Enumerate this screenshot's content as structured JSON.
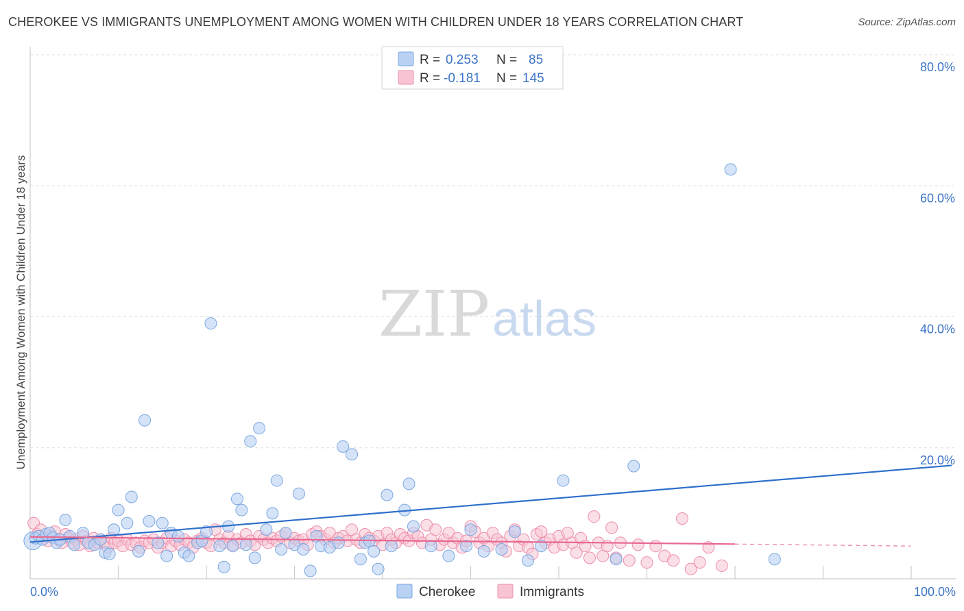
{
  "title": "CHEROKEE VS IMMIGRANTS UNEMPLOYMENT AMONG WOMEN WITH CHILDREN UNDER 18 YEARS CORRELATION CHART",
  "source": "Source: ZipAtlas.com",
  "watermark": {
    "zip": "ZIP",
    "atlas": "atlas"
  },
  "colors": {
    "cherokee_fill": "#b9d1f3",
    "cherokee_stroke": "#7aa7e0",
    "cherokee_line": "#2e6fcc",
    "immigrants_fill": "#f8c4d3",
    "immigrants_stroke": "#ec8fab",
    "immigrants_line": "#e8678f",
    "grid": "#dddddd",
    "tick": "#3b74c6"
  },
  "legend": {
    "row1": {
      "r_label": "R =",
      "r_value": "0.253",
      "n_label": "N =",
      "n_value": "85"
    },
    "row2": {
      "r_label": "R =",
      "r_value": "-0.181",
      "n_label": "N =",
      "n_value": "145"
    }
  },
  "chart_data": {
    "type": "scatter",
    "title": "CHEROKEE VS IMMIGRANTS UNEMPLOYMENT AMONG WOMEN WITH CHILDREN UNDER 18 YEARS CORRELATION CHART",
    "xlabel": "",
    "ylabel": "Unemployment Among Women with Children Under 18 years",
    "xlim": [
      0,
      100
    ],
    "ylim": [
      0,
      82
    ],
    "x_tick_labels": [
      "0.0%",
      "100.0%"
    ],
    "y_ticks": [
      20,
      40,
      60,
      80
    ],
    "y_tick_labels": [
      "20.0%",
      "40.0%",
      "60.0%",
      "80.0%"
    ],
    "series": [
      {
        "name": "Cherokee",
        "R": 0.253,
        "N": 85,
        "trend": {
          "x": [
            0,
            100
          ],
          "y": [
            5.6,
            16.8
          ]
        },
        "points": [
          [
            0.3,
            5.8
          ],
          [
            0.6,
            6.2
          ],
          [
            1.0,
            6.5
          ],
          [
            1.4,
            6.0
          ],
          [
            1.8,
            6.8
          ],
          [
            2.2,
            7.0
          ],
          [
            2.6,
            6.3
          ],
          [
            3.0,
            5.5
          ],
          [
            3.4,
            6.0
          ],
          [
            4.0,
            9.0
          ],
          [
            4.5,
            6.5
          ],
          [
            5.0,
            5.2
          ],
          [
            6.0,
            7.0
          ],
          [
            6.6,
            5.5
          ],
          [
            7.3,
            5.2
          ],
          [
            8.0,
            6.0
          ],
          [
            8.5,
            4.0
          ],
          [
            9.0,
            3.8
          ],
          [
            9.5,
            7.5
          ],
          [
            10.0,
            10.5
          ],
          [
            11.0,
            8.5
          ],
          [
            11.5,
            12.5
          ],
          [
            12.3,
            4.2
          ],
          [
            13.0,
            24.2
          ],
          [
            13.5,
            8.8
          ],
          [
            14.5,
            5.5
          ],
          [
            15.0,
            8.5
          ],
          [
            15.5,
            3.5
          ],
          [
            16.0,
            7.0
          ],
          [
            16.8,
            6.5
          ],
          [
            17.5,
            4.0
          ],
          [
            18.0,
            3.5
          ],
          [
            19.0,
            5.5
          ],
          [
            19.5,
            5.8
          ],
          [
            20.0,
            7.2
          ],
          [
            20.5,
            39.0
          ],
          [
            21.5,
            5.0
          ],
          [
            22.0,
            1.8
          ],
          [
            22.5,
            8.0
          ],
          [
            23.0,
            5.0
          ],
          [
            23.5,
            12.2
          ],
          [
            24.0,
            10.5
          ],
          [
            24.5,
            5.2
          ],
          [
            25.0,
            21.0
          ],
          [
            25.5,
            3.2
          ],
          [
            26.0,
            23.0
          ],
          [
            26.8,
            7.5
          ],
          [
            27.5,
            10.0
          ],
          [
            28.0,
            15.0
          ],
          [
            28.5,
            4.5
          ],
          [
            29.0,
            7.0
          ],
          [
            30.0,
            5.2
          ],
          [
            30.5,
            13.0
          ],
          [
            31.0,
            4.5
          ],
          [
            31.8,
            1.2
          ],
          [
            32.5,
            6.5
          ],
          [
            33.0,
            5.0
          ],
          [
            34.0,
            4.8
          ],
          [
            35.0,
            5.5
          ],
          [
            35.5,
            20.2
          ],
          [
            36.5,
            19.0
          ],
          [
            37.5,
            3.0
          ],
          [
            38.0,
            5.5
          ],
          [
            38.5,
            5.8
          ],
          [
            39.0,
            4.2
          ],
          [
            39.5,
            1.5
          ],
          [
            40.5,
            12.8
          ],
          [
            41.0,
            5.0
          ],
          [
            42.5,
            10.5
          ],
          [
            43.0,
            14.5
          ],
          [
            43.5,
            8.0
          ],
          [
            45.5,
            5.0
          ],
          [
            47.5,
            3.5
          ],
          [
            49.5,
            5.0
          ],
          [
            50.0,
            7.5
          ],
          [
            51.5,
            4.2
          ],
          [
            53.5,
            4.5
          ],
          [
            55.0,
            7.2
          ],
          [
            56.5,
            2.8
          ],
          [
            58.0,
            5.0
          ],
          [
            60.5,
            15.0
          ],
          [
            66.5,
            3.0
          ],
          [
            68.5,
            17.2
          ],
          [
            79.5,
            62.5
          ],
          [
            84.5,
            3.0
          ]
        ]
      },
      {
        "name": "Immigrants",
        "R": -0.181,
        "N": 145,
        "trend": {
          "x": [
            0,
            80
          ],
          "y": [
            6.4,
            5.3
          ]
        },
        "trend_dashed": {
          "x": [
            80,
            100
          ],
          "y": [
            5.3,
            5.0
          ]
        },
        "points": [
          [
            0.4,
            8.5
          ],
          [
            0.8,
            6.8
          ],
          [
            1.2,
            7.5
          ],
          [
            1.6,
            6.2
          ],
          [
            2.0,
            5.8
          ],
          [
            2.4,
            6.5
          ],
          [
            2.8,
            7.2
          ],
          [
            3.2,
            6.0
          ],
          [
            3.6,
            5.5
          ],
          [
            4.0,
            6.8
          ],
          [
            4.4,
            6.2
          ],
          [
            4.8,
            5.5
          ],
          [
            5.2,
            6.0
          ],
          [
            5.6,
            5.2
          ],
          [
            6.0,
            6.5
          ],
          [
            6.4,
            5.8
          ],
          [
            6.8,
            5.0
          ],
          [
            7.2,
            6.2
          ],
          [
            7.6,
            5.5
          ],
          [
            8.0,
            6.0
          ],
          [
            8.4,
            5.5
          ],
          [
            8.8,
            4.8
          ],
          [
            9.2,
            6.2
          ],
          [
            9.6,
            5.5
          ],
          [
            10.0,
            5.8
          ],
          [
            10.5,
            5.0
          ],
          [
            11.0,
            6.0
          ],
          [
            11.5,
            5.2
          ],
          [
            12.0,
            5.5
          ],
          [
            12.5,
            4.8
          ],
          [
            13.0,
            5.8
          ],
          [
            13.5,
            5.5
          ],
          [
            14.0,
            6.0
          ],
          [
            14.5,
            4.8
          ],
          [
            15.0,
            5.5
          ],
          [
            15.5,
            6.2
          ],
          [
            16.0,
            5.0
          ],
          [
            16.5,
            5.8
          ],
          [
            17.0,
            5.2
          ],
          [
            17.5,
            6.0
          ],
          [
            18.0,
            5.5
          ],
          [
            18.5,
            4.8
          ],
          [
            19.0,
            5.8
          ],
          [
            19.5,
            6.2
          ],
          [
            20.0,
            5.5
          ],
          [
            20.5,
            5.0
          ],
          [
            21.0,
            7.5
          ],
          [
            21.5,
            6.0
          ],
          [
            22.0,
            5.5
          ],
          [
            22.5,
            6.5
          ],
          [
            23.0,
            5.2
          ],
          [
            23.5,
            6.0
          ],
          [
            24.0,
            5.5
          ],
          [
            24.5,
            6.8
          ],
          [
            25.0,
            5.8
          ],
          [
            25.5,
            5.2
          ],
          [
            26.0,
            6.5
          ],
          [
            26.5,
            6.0
          ],
          [
            27.0,
            5.5
          ],
          [
            27.5,
            6.2
          ],
          [
            28.0,
            5.8
          ],
          [
            28.5,
            6.5
          ],
          [
            29.0,
            7.0
          ],
          [
            29.5,
            5.5
          ],
          [
            30.0,
            6.2
          ],
          [
            30.5,
            5.8
          ],
          [
            31.0,
            6.0
          ],
          [
            31.5,
            5.2
          ],
          [
            32.0,
            6.8
          ],
          [
            32.5,
            7.2
          ],
          [
            33.0,
            6.5
          ],
          [
            33.5,
            6.0
          ],
          [
            34.0,
            7.0
          ],
          [
            34.5,
            5.5
          ],
          [
            35.0,
            6.2
          ],
          [
            35.5,
            6.5
          ],
          [
            36.0,
            5.8
          ],
          [
            36.5,
            7.5
          ],
          [
            37.0,
            6.0
          ],
          [
            37.5,
            5.5
          ],
          [
            38.0,
            6.8
          ],
          [
            38.5,
            6.2
          ],
          [
            39.0,
            5.8
          ],
          [
            39.5,
            6.5
          ],
          [
            40.0,
            5.2
          ],
          [
            40.5,
            7.0
          ],
          [
            41.0,
            6.0
          ],
          [
            41.5,
            5.5
          ],
          [
            42.0,
            6.8
          ],
          [
            42.5,
            6.2
          ],
          [
            43.0,
            5.8
          ],
          [
            43.5,
            7.0
          ],
          [
            44.0,
            6.5
          ],
          [
            44.5,
            5.5
          ],
          [
            45.0,
            8.2
          ],
          [
            45.5,
            6.0
          ],
          [
            46.0,
            7.5
          ],
          [
            46.5,
            5.2
          ],
          [
            47.0,
            6.0
          ],
          [
            47.5,
            7.0
          ],
          [
            48.0,
            5.5
          ],
          [
            48.5,
            6.2
          ],
          [
            49.0,
            4.8
          ],
          [
            49.5,
            5.8
          ],
          [
            50.0,
            8.0
          ],
          [
            50.5,
            7.2
          ],
          [
            51.0,
            5.5
          ],
          [
            51.5,
            6.2
          ],
          [
            52.0,
            5.0
          ],
          [
            52.5,
            7.0
          ],
          [
            53.0,
            6.0
          ],
          [
            53.5,
            5.5
          ],
          [
            54.0,
            4.2
          ],
          [
            54.5,
            6.5
          ],
          [
            55.0,
            7.5
          ],
          [
            55.5,
            5.0
          ],
          [
            56.0,
            6.0
          ],
          [
            56.5,
            4.8
          ],
          [
            57.0,
            3.8
          ],
          [
            57.5,
            6.8
          ],
          [
            58.0,
            7.2
          ],
          [
            58.5,
            5.5
          ],
          [
            59.0,
            6.0
          ],
          [
            59.5,
            4.8
          ],
          [
            60.0,
            6.5
          ],
          [
            60.5,
            5.2
          ],
          [
            61.0,
            7.0
          ],
          [
            61.5,
            5.5
          ],
          [
            62.0,
            4.0
          ],
          [
            62.5,
            6.2
          ],
          [
            63.0,
            5.0
          ],
          [
            63.5,
            3.2
          ],
          [
            64.0,
            9.5
          ],
          [
            64.5,
            5.5
          ],
          [
            65.0,
            3.5
          ],
          [
            65.5,
            5.0
          ],
          [
            66.0,
            7.8
          ],
          [
            66.5,
            3.2
          ],
          [
            67.0,
            5.5
          ],
          [
            68.0,
            2.8
          ],
          [
            69.0,
            5.2
          ],
          [
            70.0,
            2.5
          ],
          [
            71.0,
            5.0
          ],
          [
            72.0,
            3.5
          ],
          [
            73.0,
            2.8
          ],
          [
            74.0,
            9.2
          ],
          [
            75.0,
            1.5
          ],
          [
            76.0,
            2.5
          ],
          [
            77.0,
            4.8
          ],
          [
            78.5,
            2.0
          ]
        ]
      }
    ],
    "legend": [
      "Cherokee",
      "Immigrants"
    ]
  }
}
